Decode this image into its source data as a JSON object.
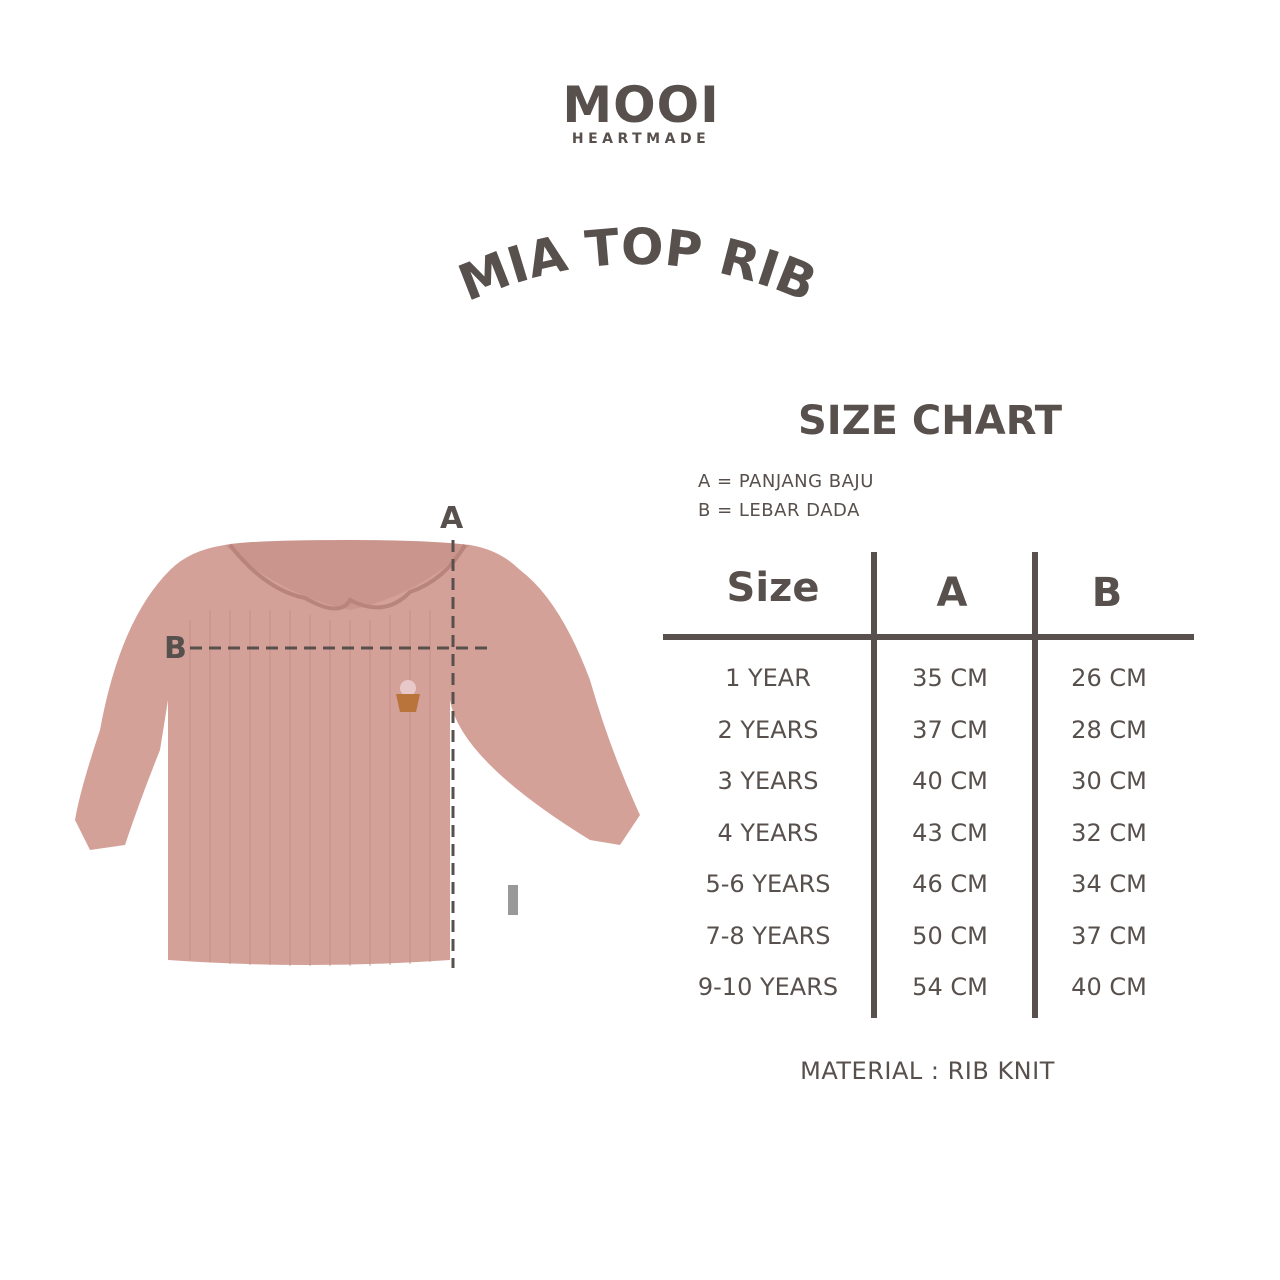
{
  "brand": {
    "name": "MOOI",
    "tagline": "HEARTMADE"
  },
  "product_title": "MIA TOP RIB",
  "size_chart": {
    "heading": "SIZE CHART",
    "legend": [
      "A = PANJANG BAJU",
      "B = LEBAR DADA"
    ],
    "columns": [
      "Size",
      "A",
      "B"
    ],
    "rows": [
      [
        "1 YEAR",
        "35 CM",
        "26 CM"
      ],
      [
        "2 YEARS",
        "37 CM",
        "28 CM"
      ],
      [
        "3 YEARS",
        "40 CM",
        "30 CM"
      ],
      [
        "4 YEARS",
        "43 CM",
        "32 CM"
      ],
      [
        "5-6 YEARS",
        "46 CM",
        "34 CM"
      ],
      [
        "7-8 YEARS",
        "50 CM",
        "37 CM"
      ],
      [
        "9-10 YEARS",
        "54 CM",
        "40 CM"
      ]
    ],
    "material": "MATERIAL : RIB KNIT"
  },
  "diagram": {
    "label_a": "A",
    "label_b": "B"
  },
  "colors": {
    "text": "#57504d",
    "garment": "#d4a199"
  }
}
